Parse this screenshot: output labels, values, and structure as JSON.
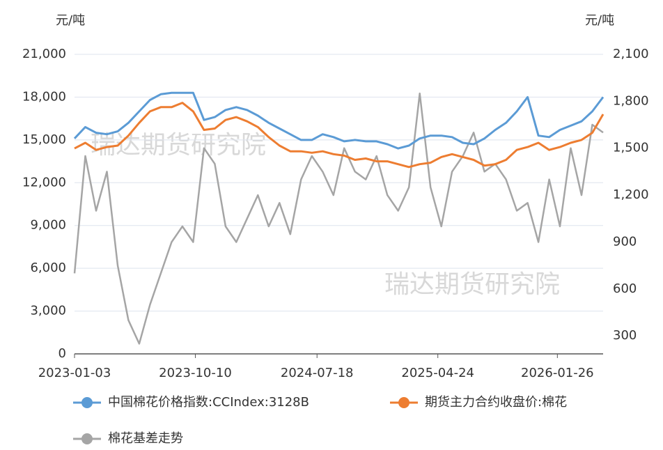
{
  "chart_data": {
    "type": "line",
    "y_unit": "元/吨",
    "y2_unit": "元/吨",
    "watermarks": [
      "瑞达期货研究院",
      "瑞达期货研究院"
    ],
    "x": [
      "2023-01-03",
      "2023-01-28",
      "2023-02-22",
      "2023-03-19",
      "2023-04-13",
      "2023-05-08",
      "2023-06-02",
      "2023-06-27",
      "2023-07-22",
      "2023-08-16",
      "2023-09-10",
      "2023-10-05",
      "2023-10-30",
      "2023-11-24",
      "2023-12-19",
      "2024-01-13",
      "2024-02-07",
      "2024-03-03",
      "2024-03-28",
      "2024-04-22",
      "2024-05-17",
      "2024-06-11",
      "2024-07-06",
      "2024-07-31",
      "2024-08-25",
      "2024-09-19",
      "2024-10-14",
      "2024-11-08",
      "2024-12-03",
      "2024-12-28",
      "2025-01-22",
      "2025-02-16",
      "2025-03-13",
      "2025-04-07",
      "2025-05-02",
      "2025-05-27",
      "2025-06-21",
      "2025-07-16",
      "2025-08-10",
      "2025-09-04",
      "2025-09-29",
      "2025-10-24",
      "2025-11-18",
      "2025-12-13",
      "2026-01-07",
      "2026-02-01",
      "2026-02-26",
      "2026-03-23",
      "2026-04-17",
      "2026-05-12"
    ],
    "xlim": [
      "2023-01-03",
      "2026-05-12"
    ],
    "xticks": [
      "2023-01-03",
      "2023-10-10",
      "2024-07-18",
      "2025-04-24",
      "2026-01-26"
    ],
    "ylim": [
      0,
      21000
    ],
    "yticks": [
      0,
      {
        "value": 3000,
        "label": "3,000"
      },
      {
        "value": 6000,
        "label": "6,000"
      },
      {
        "value": 9000,
        "label": "9,000"
      },
      {
        "value": 12000,
        "label": "12,000"
      },
      {
        "value": 15000,
        "label": "15,000"
      },
      {
        "value": 18000,
        "label": "18,000"
      },
      {
        "value": 21000,
        "label": "21,000"
      }
    ],
    "y2lim": [
      185,
      2100
    ],
    "y2ticks": [
      300,
      600,
      900,
      {
        "value": 1200,
        "label": "1,200"
      },
      {
        "value": 1500,
        "label": "1,500"
      },
      {
        "value": 1800,
        "label": "1,800"
      },
      {
        "value": 2100,
        "label": "2,100"
      }
    ],
    "grid": true,
    "series": [
      {
        "name": "中国棉花价格指数:CCIndex:3128B",
        "color": "#5b9bd5",
        "values": [
          15100,
          15900,
          15500,
          15400,
          15600,
          16200,
          17000,
          17800,
          18200,
          18300,
          18300,
          18300,
          16400,
          16600,
          17100,
          17300,
          17100,
          16700,
          16200,
          15800,
          15400,
          15000,
          15000,
          15400,
          15200,
          14900,
          15000,
          14900,
          14900,
          14700,
          14400,
          14600,
          15100,
          15300,
          15300,
          15200,
          14800,
          14700,
          15100,
          15700,
          16200,
          17000,
          18000,
          15300,
          15200,
          15700,
          16000,
          16300,
          17000,
          18000
        ]
      },
      {
        "name": "期货主力合约收盘价:棉花",
        "color": "#ed7d31",
        "values": [
          14400,
          14800,
          14300,
          14500,
          14600,
          15300,
          16200,
          17000,
          17300,
          17300,
          17600,
          17000,
          15700,
          15800,
          16400,
          16600,
          16300,
          15900,
          15200,
          14600,
          14200,
          14200,
          14100,
          14200,
          14000,
          13900,
          13600,
          13700,
          13500,
          13500,
          13300,
          13100,
          13300,
          13400,
          13800,
          14000,
          13800,
          13600,
          13200,
          13300,
          13600,
          14300,
          14500,
          14800,
          14300,
          14500,
          14800,
          15000,
          15500,
          16800
        ]
      },
      {
        "name": "棉花基差走势",
        "color": "#a5a5a5",
        "axis": "y2",
        "values": [
          700,
          1450,
          1100,
          1350,
          750,
          400,
          250,
          500,
          700,
          900,
          1000,
          900,
          1500,
          1400,
          1000,
          900,
          1050,
          1200,
          1000,
          1150,
          950,
          1300,
          1450,
          1350,
          1200,
          1500,
          1350,
          1300,
          1450,
          1200,
          1100,
          1250,
          1850,
          1250,
          1000,
          1350,
          1450,
          1600,
          1350,
          1400,
          1300,
          1100,
          1150,
          900,
          1300,
          1000,
          1500,
          1200,
          1650,
          1600
        ]
      }
    ]
  }
}
